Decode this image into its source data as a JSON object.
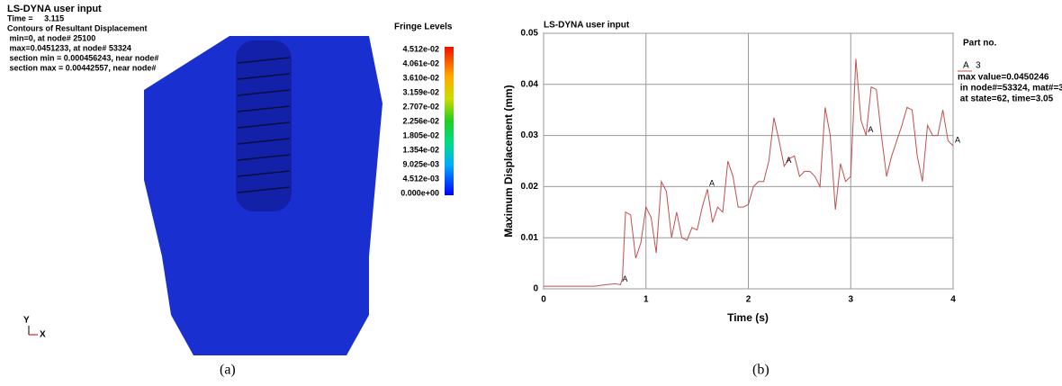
{
  "panel_a": {
    "header": [
      "LS-DYNA user input",
      "Time =     3.115",
      "Contours of Resultant Displacement",
      " min=0, at node# 25100",
      " max=0.0451233, at node# 53324",
      " section min = 0.000456243, near node#",
      " section max = 0.00442557, near node#"
    ],
    "fringe_title": "Fringe Levels",
    "fringe_labels": [
      "4.512e-02",
      "4.061e-02",
      "3.610e-02",
      "3.159e-02",
      "2.707e-02",
      "2.256e-02",
      "1.805e-02",
      "1.354e-02",
      "9.025e-03",
      "4.512e-03",
      "0.000e+00"
    ],
    "axis_y": "Y",
    "axis_x": "X",
    "caption": "(a)"
  },
  "panel_b": {
    "caption": "(b)"
  },
  "chart_data": {
    "type": "line",
    "title": "LS-DYNA user input",
    "x_label": "Time (s)",
    "y_label": "Maximum Displacement (mm)",
    "xlim": [
      0,
      4
    ],
    "ylim": [
      0,
      0.05
    ],
    "xticks": [
      0,
      1,
      2,
      3,
      4
    ],
    "yticks": [
      0,
      0.01,
      0.02,
      0.03,
      0.04,
      0.05
    ],
    "grid": true,
    "x": [
      0,
      0.5,
      0.6,
      0.7,
      0.75,
      0.77,
      0.8,
      0.85,
      0.9,
      0.95,
      1.0,
      1.05,
      1.1,
      1.15,
      1.2,
      1.25,
      1.3,
      1.35,
      1.4,
      1.45,
      1.5,
      1.55,
      1.6,
      1.65,
      1.7,
      1.75,
      1.8,
      1.85,
      1.9,
      1.95,
      2.0,
      2.05,
      2.1,
      2.15,
      2.2,
      2.25,
      2.3,
      2.35,
      2.4,
      2.45,
      2.5,
      2.55,
      2.6,
      2.65,
      2.7,
      2.75,
      2.8,
      2.85,
      2.9,
      2.95,
      3.0,
      3.05,
      3.1,
      3.15,
      3.2,
      3.25,
      3.3,
      3.35,
      3.4,
      3.5,
      3.55,
      3.6,
      3.65,
      3.7,
      3.75,
      3.8,
      3.85,
      3.9,
      3.95,
      4.0
    ],
    "series": [
      {
        "name": "A",
        "color": "#c0504d",
        "values": [
          0.0005,
          0.0005,
          0.0008,
          0.001,
          0.0008,
          0.002,
          0.015,
          0.0145,
          0.006,
          0.009,
          0.016,
          0.014,
          0.007,
          0.021,
          0.019,
          0.01,
          0.015,
          0.01,
          0.0095,
          0.012,
          0.0115,
          0.016,
          0.0195,
          0.013,
          0.016,
          0.015,
          0.025,
          0.022,
          0.016,
          0.016,
          0.0165,
          0.02,
          0.021,
          0.021,
          0.025,
          0.0335,
          0.029,
          0.024,
          0.0255,
          0.026,
          0.022,
          0.023,
          0.023,
          0.022,
          0.02,
          0.0355,
          0.03,
          0.0155,
          0.0245,
          0.021,
          0.022,
          0.045,
          0.033,
          0.03,
          0.0395,
          0.039,
          0.03,
          0.022,
          0.026,
          0.032,
          0.0355,
          0.035,
          0.026,
          0.021,
          0.032,
          0.03,
          0.03,
          0.035,
          0.029,
          0.028
        ]
      }
    ],
    "legend_title": "Part no.",
    "legend_part": "3",
    "legend_notes": [
      "max value=0.0450246",
      " in node#=53324, mat#=3",
      " at state=62, time=3.05"
    ]
  }
}
